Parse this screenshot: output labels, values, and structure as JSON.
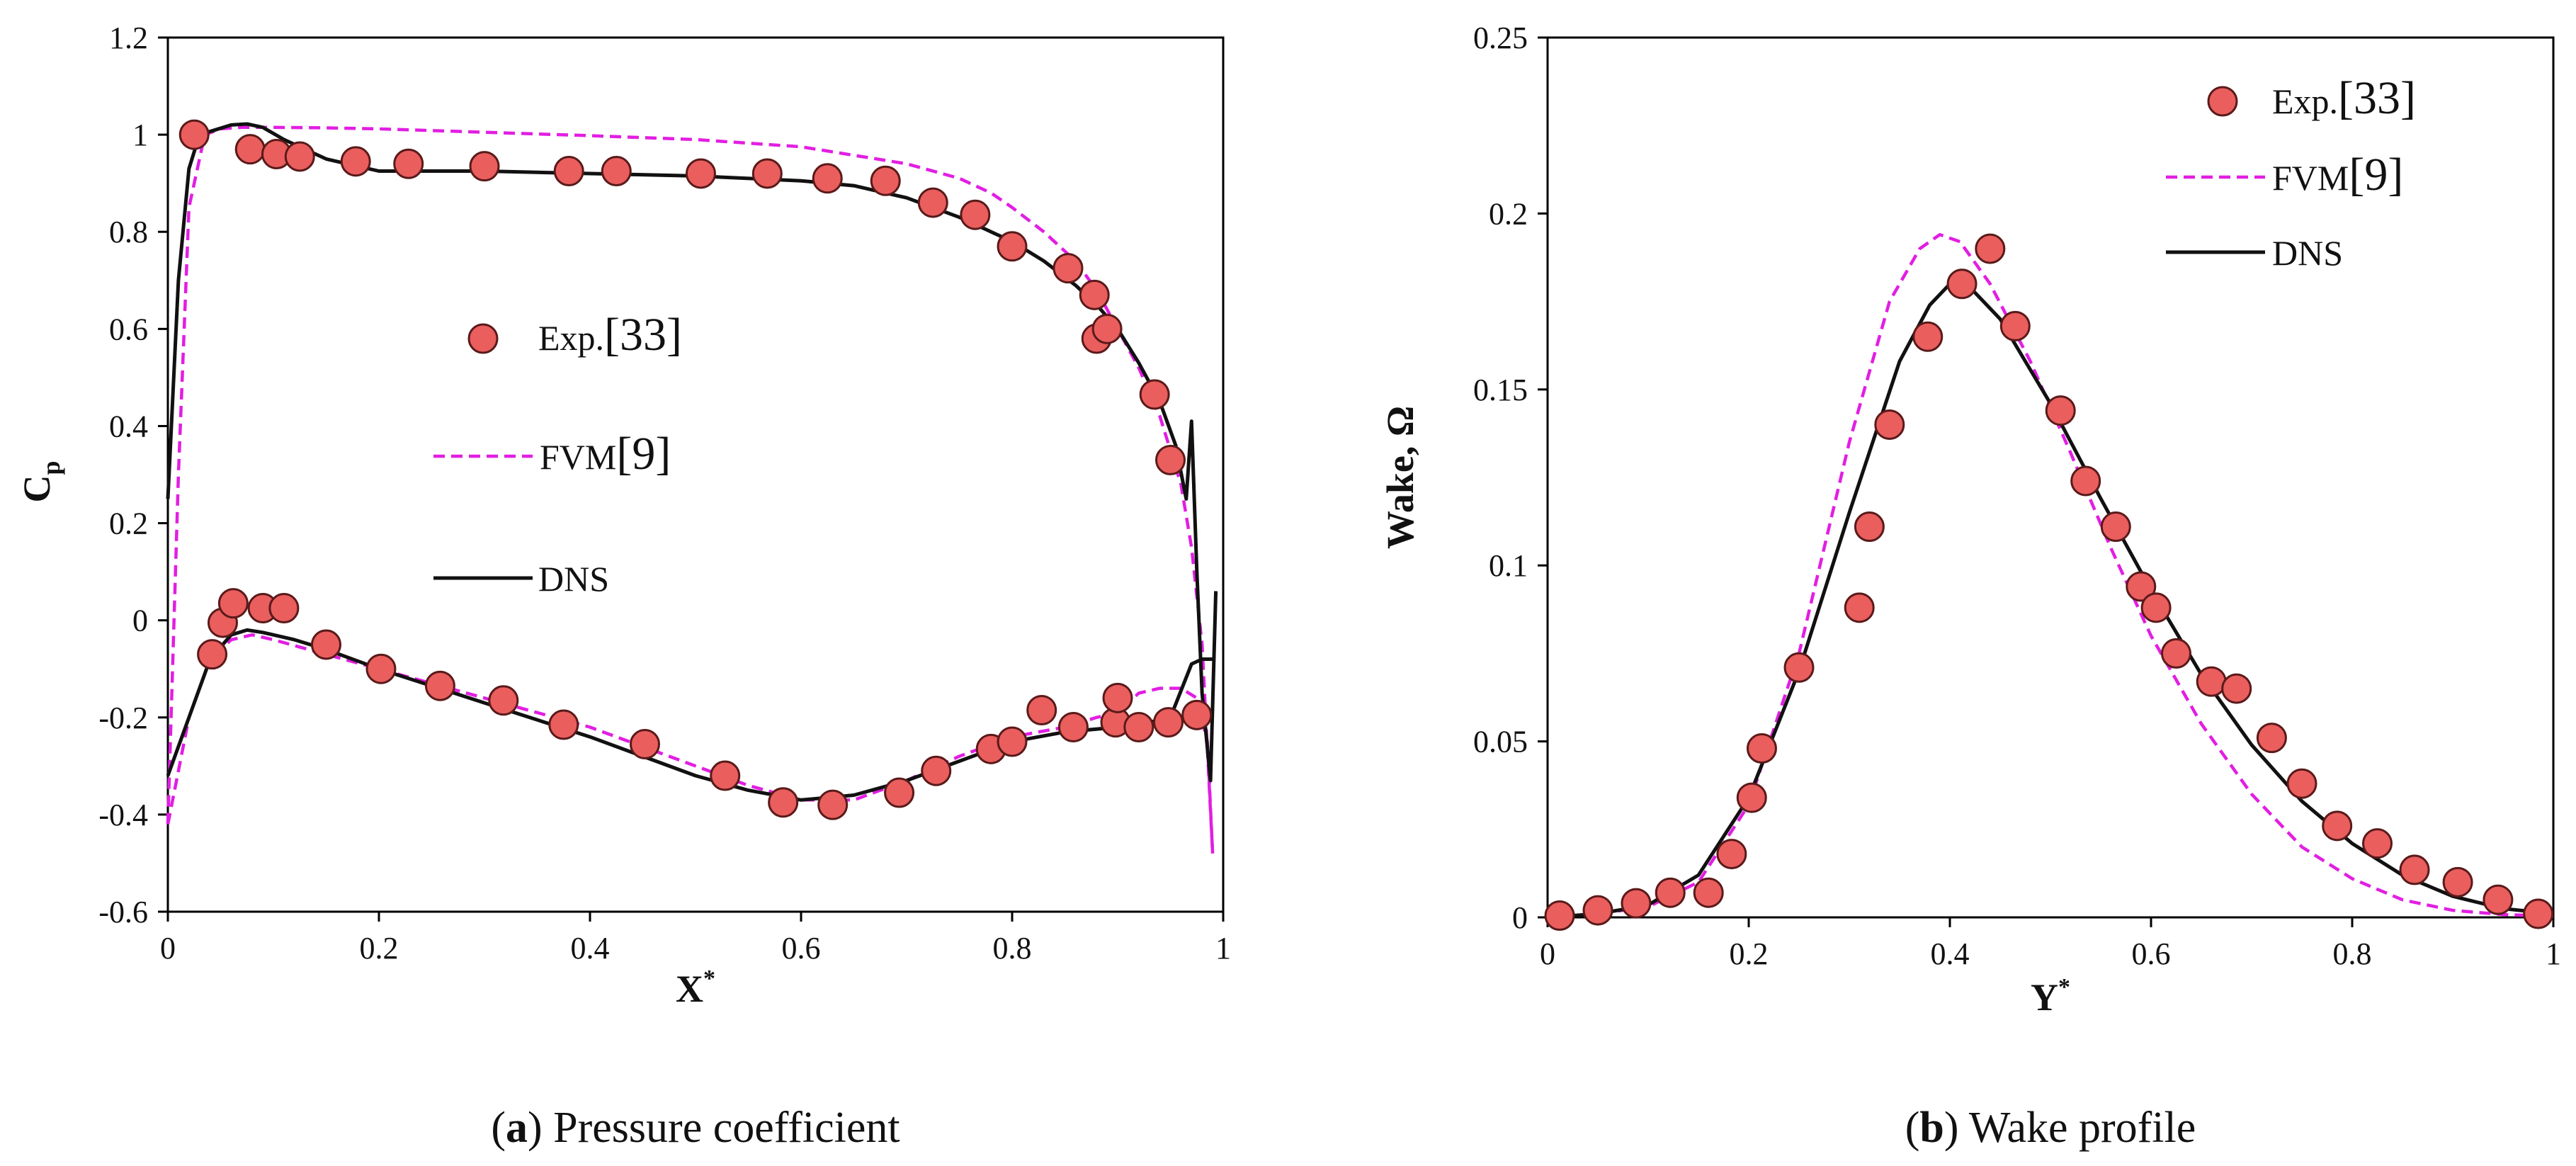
{
  "chart_data": [
    {
      "type": "line",
      "caption_label": "a",
      "caption_text": ") Pressure coefficient",
      "title": "",
      "xlabel": "X",
      "xlabel_sup": "*",
      "ylabel": "C",
      "ylabel_sub": "p",
      "xlim": [
        0,
        1
      ],
      "ylim": [
        -0.6,
        1.2
      ],
      "xticks": [
        "0",
        "0.2",
        "0.4",
        "0.6",
        "0.8",
        "1"
      ],
      "xtick_values": [
        0,
        0.2,
        0.4,
        0.6,
        0.8,
        1
      ],
      "yticks": [
        "-0.6",
        "-0.4",
        "-0.2",
        "0",
        "0.2",
        "0.4",
        "0.6",
        "0.8",
        "1",
        "1.2"
      ],
      "ytick_values": [
        -0.6,
        -0.4,
        -0.2,
        0,
        0.2,
        0.4,
        0.6,
        0.8,
        1,
        1.2
      ],
      "legend": {
        "location": "center",
        "exp": "Exp.",
        "exp_ref": "[33]",
        "fvm": "FVM",
        "fvm_ref": "[9]",
        "dns": "DNS"
      },
      "series": [
        {
          "name": "Exp. [33]",
          "style": "markers",
          "x": [
            0.025,
            0.078,
            0.103,
            0.125,
            0.178,
            0.228,
            0.3,
            0.38,
            0.425,
            0.505,
            0.568,
            0.625,
            0.68,
            0.725,
            0.765,
            0.8,
            0.853,
            0.878,
            0.88,
            0.89,
            0.935,
            0.95,
            0.042,
            0.052,
            0.062,
            0.09,
            0.11,
            0.15,
            0.202,
            0.258,
            0.318,
            0.375,
            0.452,
            0.528,
            0.583,
            0.63,
            0.693,
            0.728,
            0.78,
            0.8,
            0.828,
            0.858,
            0.898,
            0.9,
            0.92,
            0.948,
            0.975
          ],
          "y": [
            1.0,
            0.97,
            0.96,
            0.955,
            0.945,
            0.94,
            0.935,
            0.925,
            0.925,
            0.92,
            0.92,
            0.91,
            0.905,
            0.86,
            0.835,
            0.77,
            0.725,
            0.67,
            0.58,
            0.6,
            0.465,
            0.33,
            -0.07,
            -0.005,
            0.035,
            0.025,
            0.025,
            -0.05,
            -0.1,
            -0.135,
            -0.165,
            -0.215,
            -0.255,
            -0.32,
            -0.375,
            -0.38,
            -0.355,
            -0.31,
            -0.265,
            -0.25,
            -0.185,
            -0.22,
            -0.21,
            -0.16,
            -0.22,
            -0.21,
            -0.195
          ]
        },
        {
          "name": "FVM [9] upper",
          "style": "dashed",
          "x": [
            0.0,
            0.01,
            0.02,
            0.035,
            0.05,
            0.07,
            0.1,
            0.15,
            0.2,
            0.3,
            0.4,
            0.5,
            0.6,
            0.7,
            0.75,
            0.78,
            0.8,
            0.83,
            0.86,
            0.88,
            0.9,
            0.92,
            0.94,
            0.96,
            0.97,
            0.98,
            0.99
          ],
          "y": [
            -0.42,
            0.3,
            0.85,
            1.0,
            1.012,
            1.015,
            1.015,
            1.014,
            1.012,
            1.005,
            0.998,
            0.99,
            0.975,
            0.94,
            0.91,
            0.88,
            0.85,
            0.8,
            0.74,
            0.68,
            0.6,
            0.52,
            0.42,
            0.28,
            0.15,
            -0.05,
            -0.48
          ]
        },
        {
          "name": "FVM [9] lower",
          "style": "dashed",
          "x": [
            0.0,
            0.02,
            0.04,
            0.06,
            0.08,
            0.1,
            0.15,
            0.2,
            0.3,
            0.4,
            0.5,
            0.55,
            0.6,
            0.65,
            0.7,
            0.75,
            0.8,
            0.85,
            0.88,
            0.9,
            0.92,
            0.94,
            0.96,
            0.975,
            0.985,
            0.99
          ],
          "y": [
            -0.42,
            -0.2,
            -0.08,
            -0.04,
            -0.03,
            -0.04,
            -0.07,
            -0.1,
            -0.16,
            -0.22,
            -0.3,
            -0.34,
            -0.37,
            -0.37,
            -0.33,
            -0.28,
            -0.24,
            -0.22,
            -0.2,
            -0.19,
            -0.15,
            -0.14,
            -0.14,
            -0.16,
            -0.25,
            -0.48
          ]
        },
        {
          "name": "DNS upper",
          "style": "solid",
          "x": [
            0.0,
            0.01,
            0.02,
            0.03,
            0.045,
            0.06,
            0.075,
            0.09,
            0.11,
            0.15,
            0.2,
            0.3,
            0.4,
            0.5,
            0.6,
            0.65,
            0.7,
            0.75,
            0.8,
            0.83,
            0.86,
            0.88,
            0.9,
            0.92,
            0.94,
            0.955,
            0.965,
            0.97,
            0.975,
            0.98,
            0.988,
            0.993
          ],
          "y": [
            0.25,
            0.7,
            0.93,
            1.0,
            1.01,
            1.02,
            1.022,
            1.015,
            0.99,
            0.95,
            0.925,
            0.925,
            0.92,
            0.915,
            0.905,
            0.895,
            0.87,
            0.83,
            0.78,
            0.74,
            0.69,
            0.65,
            0.6,
            0.53,
            0.45,
            0.36,
            0.25,
            0.41,
            0.1,
            -0.15,
            -0.33,
            0.06
          ]
        },
        {
          "name": "DNS lower",
          "style": "solid",
          "x": [
            0.0,
            0.02,
            0.04,
            0.06,
            0.075,
            0.09,
            0.12,
            0.15,
            0.2,
            0.3,
            0.4,
            0.5,
            0.55,
            0.6,
            0.65,
            0.7,
            0.75,
            0.8,
            0.85,
            0.9,
            0.93,
            0.95,
            0.97,
            0.98,
            0.99
          ],
          "y": [
            -0.32,
            -0.2,
            -0.08,
            -0.03,
            -0.02,
            -0.025,
            -0.04,
            -0.06,
            -0.1,
            -0.17,
            -0.24,
            -0.32,
            -0.35,
            -0.37,
            -0.36,
            -0.33,
            -0.29,
            -0.25,
            -0.23,
            -0.22,
            -0.21,
            -0.2,
            -0.09,
            -0.08,
            -0.08
          ]
        }
      ]
    },
    {
      "type": "line",
      "caption_label": "b",
      "caption_text": ") Wake profile",
      "title": "",
      "xlabel": "Y",
      "xlabel_sup": "*",
      "ylabel": "Wake, Ω",
      "xlim": [
        0,
        1
      ],
      "ylim": [
        0,
        0.25
      ],
      "xticks": [
        "0",
        "0.2",
        "0.4",
        "0.6",
        "0.8",
        "1"
      ],
      "xtick_values": [
        0,
        0.2,
        0.4,
        0.6,
        0.8,
        1
      ],
      "yticks": [
        "0",
        "0.05",
        "0.1",
        "0.15",
        "0.2",
        "0.25"
      ],
      "ytick_values": [
        0,
        0.05,
        0.1,
        0.15,
        0.2,
        0.25
      ],
      "legend": {
        "location": "top-right",
        "exp": "Exp.",
        "exp_ref": "[33]",
        "fvm": "FVM",
        "fvm_ref": "[9]",
        "dns": "DNS"
      },
      "series": [
        {
          "name": "Exp. [33]",
          "style": "markers",
          "x": [
            0.012,
            0.05,
            0.088,
            0.122,
            0.16,
            0.183,
            0.203,
            0.213,
            0.25,
            0.31,
            0.32,
            0.34,
            0.378,
            0.412,
            0.44,
            0.465,
            0.51,
            0.535,
            0.565,
            0.59,
            0.605,
            0.625,
            0.66,
            0.685,
            0.72,
            0.75,
            0.785,
            0.825,
            0.862,
            0.905,
            0.945,
            0.985
          ],
          "y": [
            0.0005,
            0.002,
            0.004,
            0.007,
            0.007,
            0.018,
            0.034,
            0.048,
            0.071,
            0.088,
            0.111,
            0.14,
            0.165,
            0.18,
            0.19,
            0.168,
            0.144,
            0.124,
            0.111,
            0.094,
            0.088,
            0.075,
            0.067,
            0.065,
            0.051,
            0.038,
            0.026,
            0.021,
            0.0135,
            0.01,
            0.005,
            0.001
          ]
        },
        {
          "name": "FVM [9]",
          "style": "dashed",
          "x": [
            0.0,
            0.05,
            0.1,
            0.15,
            0.2,
            0.25,
            0.3,
            0.34,
            0.37,
            0.39,
            0.41,
            0.44,
            0.48,
            0.52,
            0.56,
            0.6,
            0.65,
            0.7,
            0.75,
            0.8,
            0.85,
            0.9,
            0.95,
            1.0
          ],
          "y": [
            0.0,
            0.001,
            0.003,
            0.01,
            0.032,
            0.075,
            0.135,
            0.175,
            0.19,
            0.194,
            0.192,
            0.18,
            0.158,
            0.132,
            0.105,
            0.08,
            0.055,
            0.035,
            0.02,
            0.011,
            0.005,
            0.002,
            0.0008,
            0.0003
          ]
        },
        {
          "name": "DNS",
          "style": "solid",
          "x": [
            0.0,
            0.05,
            0.1,
            0.15,
            0.2,
            0.25,
            0.3,
            0.35,
            0.38,
            0.4,
            0.42,
            0.45,
            0.5,
            0.55,
            0.6,
            0.65,
            0.7,
            0.75,
            0.8,
            0.85,
            0.9,
            0.95,
            1.0
          ],
          "y": [
            0.0,
            0.001,
            0.0035,
            0.012,
            0.034,
            0.07,
            0.115,
            0.158,
            0.174,
            0.18,
            0.179,
            0.17,
            0.146,
            0.119,
            0.093,
            0.069,
            0.049,
            0.033,
            0.021,
            0.012,
            0.006,
            0.0025,
            0.001
          ]
        }
      ]
    }
  ]
}
